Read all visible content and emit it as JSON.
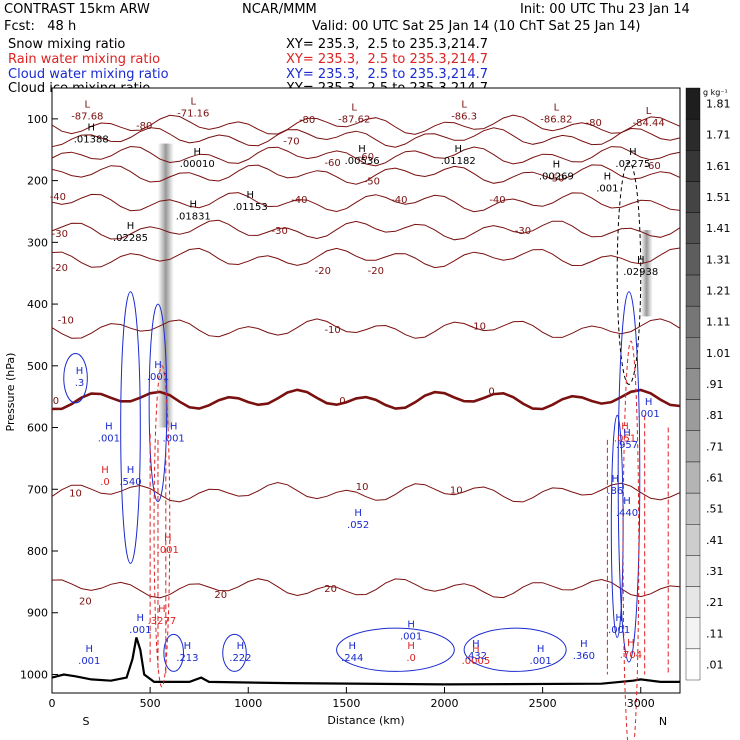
{
  "header": {
    "model": "CONTRAST 15km ARW",
    "org": "NCAR/MMM",
    "init": "Init: 00 UTC Thu 23 Jan 14",
    "fcst": "Fcst:   48 h",
    "valid": "Valid: 00 UTC Sat 25 Jan 14 (10 ChT Sat 25 Jan 14)"
  },
  "fields": [
    {
      "name": "Snow mixing ratio",
      "xy": "XY= 235.3,  2.5 to 235.3,214.7",
      "color": "#000000"
    },
    {
      "name": "Rain water mixing ratio",
      "xy": "XY= 235.3,  2.5 to 235.3,214.7",
      "color": "#dd2222"
    },
    {
      "name": "Cloud water mixing ratio",
      "xy": "XY= 235.3,  2.5 to 235.3,214.7",
      "color": "#1a2ad0"
    },
    {
      "name": "Cloud ice mixing ratio",
      "xy": "XY= 235.3,  2.5 to 235.3,214.7",
      "color": "#000000"
    }
  ],
  "chart_data": {
    "type": "cross-section",
    "xlabel": "Distance (km)",
    "ylabel": "Pressure (hPa)",
    "xlim": [
      0,
      3200
    ],
    "ylim": [
      1030,
      50
    ],
    "xticks": [
      "0",
      "500",
      "1000",
      "1500",
      "2000",
      "2500",
      "3000"
    ],
    "yticks": [
      "100",
      "200",
      "300",
      "400",
      "500",
      "600",
      "700",
      "800",
      "900",
      "1000"
    ],
    "end_labels": {
      "left": "S",
      "right": "N"
    },
    "colorbar": {
      "units": "g kg⁻¹",
      "levels": [
        ".01",
        ".11",
        ".21",
        ".31",
        ".41",
        ".51",
        ".61",
        ".71",
        ".81",
        ".91",
        "1.01",
        "1.11",
        "1.21",
        "1.31",
        "1.41",
        "1.51",
        "1.61",
        "1.71",
        "1.81"
      ]
    },
    "temperature_contours": [
      {
        "value": -80,
        "p": 110
      },
      {
        "value": -70,
        "p": 130
      },
      {
        "value": -60,
        "p": 160
      },
      {
        "value": -50,
        "p": 190
      },
      {
        "value": -40,
        "p": 235
      },
      {
        "value": -30,
        "p": 280
      },
      {
        "value": -20,
        "p": 325
      },
      {
        "value": -10,
        "p": 440
      },
      {
        "value": 0,
        "p": 555
      },
      {
        "value": 10,
        "p": 705
      },
      {
        "value": 20,
        "p": 860
      }
    ],
    "contour_labels": [
      {
        "text": "-80",
        "x": 470,
        "p": 110
      },
      {
        "text": "-80",
        "x": 1300,
        "p": 100
      },
      {
        "text": "-80",
        "x": 2760,
        "p": 105
      },
      {
        "text": "-70",
        "x": 1220,
        "p": 135
      },
      {
        "text": "-60",
        "x": 1430,
        "p": 170
      },
      {
        "text": "-60",
        "x": 1600,
        "p": 160
      },
      {
        "text": "-60",
        "x": 3060,
        "p": 175
      },
      {
        "text": "-50",
        "x": 1630,
        "p": 200
      },
      {
        "text": "-50",
        "x": 2570,
        "p": 195
      },
      {
        "text": "-40",
        "x": 30,
        "p": 225
      },
      {
        "text": "-40",
        "x": 1260,
        "p": 230
      },
      {
        "text": "-40",
        "x": 1770,
        "p": 230
      },
      {
        "text": "-40",
        "x": 2270,
        "p": 230
      },
      {
        "text": "-30",
        "x": 40,
        "p": 285
      },
      {
        "text": "-30",
        "x": 1160,
        "p": 280
      },
      {
        "text": "-30",
        "x": 2400,
        "p": 280
      },
      {
        "text": "-20",
        "x": 40,
        "p": 340
      },
      {
        "text": "-20",
        "x": 1380,
        "p": 345
      },
      {
        "text": "-20",
        "x": 1650,
        "p": 345
      },
      {
        "text": "-10",
        "x": 70,
        "p": 425
      },
      {
        "text": "-10",
        "x": 1430,
        "p": 440
      },
      {
        "text": "-10",
        "x": 2170,
        "p": 435
      },
      {
        "text": "0",
        "x": 20,
        "p": 555
      },
      {
        "text": "0",
        "x": 1480,
        "p": 555
      },
      {
        "text": "0",
        "x": 2240,
        "p": 540
      },
      {
        "text": "10",
        "x": 120,
        "p": 705
      },
      {
        "text": "10",
        "x": 1580,
        "p": 695
      },
      {
        "text": "10",
        "x": 2060,
        "p": 700
      },
      {
        "text": "20",
        "x": 170,
        "p": 880
      },
      {
        "text": "20",
        "x": 860,
        "p": 870
      },
      {
        "text": "20",
        "x": 1420,
        "p": 860
      }
    ],
    "highs_lows": [
      {
        "kind": "L",
        "value": "-87.68",
        "x": 180,
        "p": 85
      },
      {
        "kind": "L",
        "value": "-71.16",
        "x": 720,
        "p": 80
      },
      {
        "kind": "L",
        "value": "-87.62",
        "x": 1540,
        "p": 90
      },
      {
        "kind": "L",
        "value": "-86.3",
        "x": 2100,
        "p": 85
      },
      {
        "kind": "L",
        "value": "-86.82",
        "x": 2570,
        "p": 90
      },
      {
        "kind": "L",
        "value": "-84.44",
        "x": 3040,
        "p": 95
      }
    ],
    "snow_maxima": [
      {
        "value": ".01388",
        "x": 200,
        "p": 125
      },
      {
        "value": ".00010",
        "x": 740,
        "p": 165
      },
      {
        "value": ".00536",
        "x": 1580,
        "p": 160
      },
      {
        "value": ".01182",
        "x": 2070,
        "p": 160
      },
      {
        "value": ".00269",
        "x": 2570,
        "p": 185
      },
      {
        "value": ".001",
        "x": 2830,
        "p": 205
      },
      {
        "value": ".02275",
        "x": 2960,
        "p": 165
      },
      {
        "value": ".01831",
        "x": 720,
        "p": 250
      },
      {
        "value": ".01153",
        "x": 1010,
        "p": 235
      },
      {
        "value": ".02285",
        "x": 400,
        "p": 285
      },
      {
        "value": ".02938",
        "x": 3000,
        "p": 340
      }
    ],
    "rain_maxima": [
      {
        "value": ".0",
        "x": 270,
        "p": 680
      },
      {
        "value": ".001",
        "x": 590,
        "p": 790
      },
      {
        "value": ".3277",
        "x": 560,
        "p": 905
      },
      {
        "value": ".0",
        "x": 1830,
        "p": 965
      },
      {
        "value": ".0005",
        "x": 2160,
        "p": 970
      },
      {
        "value": ".051",
        "x": 2920,
        "p": 610
      },
      {
        "value": ".704",
        "x": 2950,
        "p": 960
      }
    ],
    "cloud_water_maxima": [
      {
        "value": ".3",
        "x": 140,
        "p": 520
      },
      {
        "value": ".001",
        "x": 540,
        "p": 510
      },
      {
        "value": ".001",
        "x": 290,
        "p": 610
      },
      {
        "value": ".001",
        "x": 620,
        "p": 610
      },
      {
        "value": ".540",
        "x": 400,
        "p": 680
      },
      {
        "value": ".052",
        "x": 1560,
        "p": 750
      },
      {
        "value": ".001",
        "x": 450,
        "p": 920
      },
      {
        "value": ".001",
        "x": 190,
        "p": 970
      },
      {
        "value": ".213",
        "x": 690,
        "p": 965
      },
      {
        "value": ".222",
        "x": 960,
        "p": 965
      },
      {
        "value": ".244",
        "x": 1530,
        "p": 965
      },
      {
        "value": ".001",
        "x": 1830,
        "p": 930
      },
      {
        "value": ".432",
        "x": 2160,
        "p": 962
      },
      {
        "value": ".001",
        "x": 2490,
        "p": 970
      },
      {
        "value": ".360",
        "x": 2710,
        "p": 962
      },
      {
        "value": ".001",
        "x": 3040,
        "p": 570
      },
      {
        "value": ".957",
        "x": 2930,
        "p": 620
      },
      {
        "value": ".86",
        "x": 2870,
        "p": 695
      },
      {
        "value": ".440",
        "x": 2930,
        "p": 730
      },
      {
        "value": ".001",
        "x": 2890,
        "p": 920
      }
    ],
    "terrain": [
      [
        0,
        1005
      ],
      [
        60,
        1000
      ],
      [
        120,
        1003
      ],
      [
        200,
        1008
      ],
      [
        300,
        1010
      ],
      [
        380,
        1005
      ],
      [
        410,
        975
      ],
      [
        430,
        940
      ],
      [
        450,
        960
      ],
      [
        470,
        1000
      ],
      [
        520,
        1012
      ],
      [
        700,
        1012
      ],
      [
        760,
        1005
      ],
      [
        800,
        1012
      ],
      [
        1200,
        1014
      ],
      [
        2000,
        1016
      ],
      [
        2800,
        1015
      ],
      [
        2960,
        1010
      ],
      [
        3000,
        1008
      ],
      [
        3100,
        1012
      ],
      [
        3200,
        1012
      ]
    ]
  }
}
